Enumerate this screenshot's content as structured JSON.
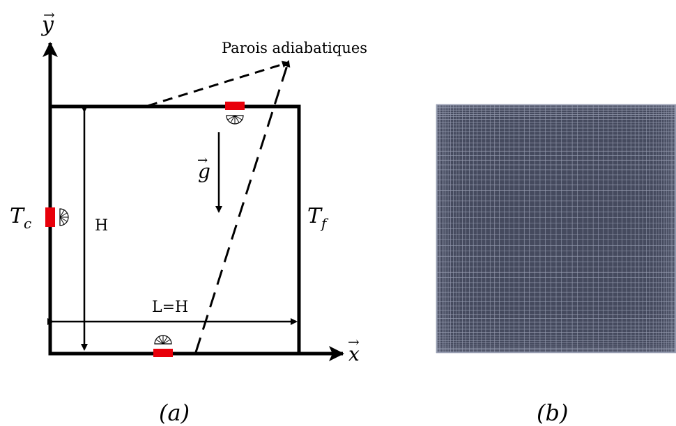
{
  "panel_a": {
    "y_axis_label": "y",
    "x_axis_label": "x",
    "gravity_label": "g",
    "annotation": "Parois adiabatiques",
    "hot_wall_label": "T",
    "hot_wall_sub": "c",
    "cold_wall_label": "T",
    "cold_wall_sub": "f",
    "height_label": "H",
    "width_label": "L=H",
    "caption": "(a)"
  },
  "panel_b": {
    "caption": "(b)",
    "mesh_color": "#454a5e",
    "mesh_line_color": "#9aa0b4"
  },
  "colors": {
    "heater": "#e8000a",
    "outline": "#000000"
  }
}
